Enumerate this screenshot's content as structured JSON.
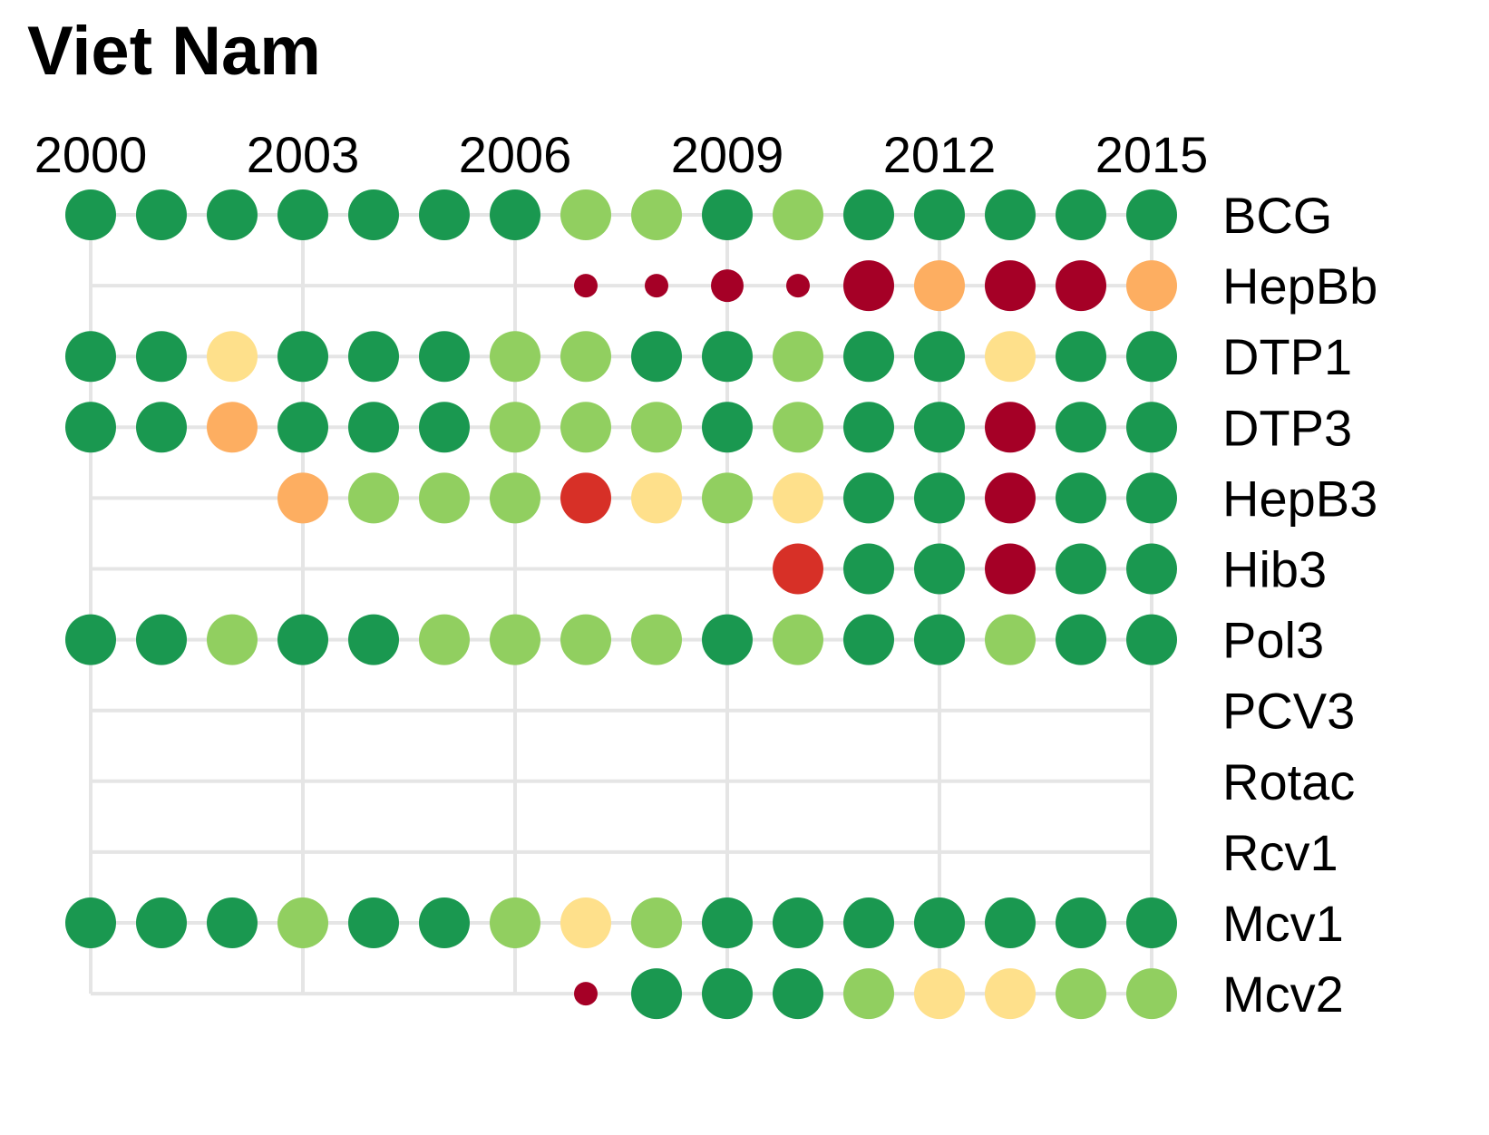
{
  "chart_data": {
    "type": "scatter",
    "title": "Viet Nam",
    "xlabel": "",
    "ylabel": "",
    "x_ticks": [
      "2000",
      "2003",
      "2006",
      "2009",
      "2012",
      "2015"
    ],
    "x_range": [
      2000,
      2015
    ],
    "years": [
      2000,
      2001,
      2002,
      2003,
      2004,
      2005,
      2006,
      2007,
      2008,
      2009,
      2010,
      2011,
      2012,
      2013,
      2014,
      2015
    ],
    "vaccines": [
      "BCG",
      "HepBb",
      "DTP1",
      "DTP3",
      "HepB3",
      "Hib3",
      "Pol3",
      "PCV3",
      "Rotac",
      "Rcv1",
      "Mcv1",
      "Mcv2"
    ],
    "grid": true,
    "legend": "none",
    "colors": {
      "A": "#1a9850",
      "B": "#91cf60",
      "C": "#fee08b",
      "D": "#fdae61",
      "E": "#d73027",
      "F": "#a50026"
    },
    "series": [
      {
        "name": "BCG",
        "start": 2000,
        "values": [
          "A",
          "A",
          "A",
          "A",
          "A",
          "A",
          "A",
          "B",
          "B",
          "A",
          "B",
          "A",
          "A",
          "A",
          "A",
          "A"
        ],
        "size": [
          "L",
          "L",
          "L",
          "L",
          "L",
          "L",
          "L",
          "L",
          "L",
          "L",
          "L",
          "L",
          "L",
          "L",
          "L",
          "L"
        ]
      },
      {
        "name": "HepBb",
        "start": 2007,
        "values": [
          "F",
          "F",
          "F",
          "F",
          "F",
          "D",
          "F",
          "F",
          "D"
        ],
        "size": [
          "S",
          "S",
          "M",
          "S",
          "L",
          "L",
          "L",
          "L",
          "L"
        ]
      },
      {
        "name": "DTP1",
        "start": 2000,
        "values": [
          "A",
          "A",
          "C",
          "A",
          "A",
          "A",
          "B",
          "B",
          "A",
          "A",
          "B",
          "A",
          "A",
          "C",
          "A",
          "A"
        ],
        "size": [
          "L",
          "L",
          "L",
          "L",
          "L",
          "L",
          "L",
          "L",
          "L",
          "L",
          "L",
          "L",
          "L",
          "L",
          "L",
          "L"
        ]
      },
      {
        "name": "DTP3",
        "start": 2000,
        "values": [
          "A",
          "A",
          "D",
          "A",
          "A",
          "A",
          "B",
          "B",
          "B",
          "A",
          "B",
          "A",
          "A",
          "F",
          "A",
          "A"
        ],
        "size": [
          "L",
          "L",
          "L",
          "L",
          "L",
          "L",
          "L",
          "L",
          "L",
          "L",
          "L",
          "L",
          "L",
          "L",
          "L",
          "L"
        ]
      },
      {
        "name": "HepB3",
        "start": 2003,
        "values": [
          "D",
          "B",
          "B",
          "B",
          "E",
          "C",
          "B",
          "C",
          "A",
          "A",
          "F",
          "A",
          "A"
        ],
        "size": [
          "L",
          "L",
          "L",
          "L",
          "L",
          "L",
          "L",
          "L",
          "L",
          "L",
          "L",
          "L",
          "L"
        ]
      },
      {
        "name": "Hib3",
        "start": 2010,
        "values": [
          "E",
          "A",
          "A",
          "F",
          "A",
          "A"
        ],
        "size": [
          "L",
          "L",
          "L",
          "L",
          "L",
          "L"
        ]
      },
      {
        "name": "Pol3",
        "start": 2000,
        "values": [
          "A",
          "A",
          "B",
          "A",
          "A",
          "B",
          "B",
          "B",
          "B",
          "A",
          "B",
          "A",
          "A",
          "B",
          "A",
          "A"
        ],
        "size": [
          "L",
          "L",
          "L",
          "L",
          "L",
          "L",
          "L",
          "L",
          "L",
          "L",
          "L",
          "L",
          "L",
          "L",
          "L",
          "L"
        ]
      },
      {
        "name": "PCV3",
        "start": null,
        "values": [],
        "size": []
      },
      {
        "name": "Rotac",
        "start": null,
        "values": [],
        "size": []
      },
      {
        "name": "Rcv1",
        "start": null,
        "values": [],
        "size": []
      },
      {
        "name": "Mcv1",
        "start": 2000,
        "values": [
          "A",
          "A",
          "A",
          "B",
          "A",
          "A",
          "B",
          "C",
          "B",
          "A",
          "A",
          "A",
          "A",
          "A",
          "A",
          "A"
        ],
        "size": [
          "L",
          "L",
          "L",
          "L",
          "L",
          "L",
          "L",
          "L",
          "L",
          "L",
          "L",
          "L",
          "L",
          "L",
          "L",
          "L"
        ]
      },
      {
        "name": "Mcv2",
        "start": 2007,
        "values": [
          "F",
          "A",
          "A",
          "A",
          "B",
          "C",
          "C",
          "B",
          "B"
        ],
        "size": [
          "S",
          "L",
          "L",
          "L",
          "L",
          "L",
          "L",
          "L",
          "L"
        ]
      }
    ]
  }
}
